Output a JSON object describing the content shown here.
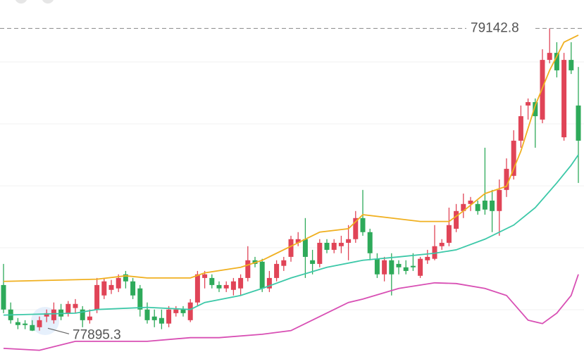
{
  "chart_data": {
    "type": "candlestick",
    "ylim": [
      77780,
      79260
    ],
    "up_color": "#e04457",
    "down_color": "#2eaa5a",
    "high_label": 79142.8,
    "low_label": 77895.3,
    "open": [
      78085,
      77984,
      77932,
      77926,
      77920,
      77911,
      77955,
      77940,
      77984,
      77969,
      77990,
      77984,
      77940,
      77984,
      78042,
      78065,
      78071,
      78129,
      78100,
      78071,
      77984,
      77955,
      77949,
      77926,
      77969,
      77984,
      77940,
      78013,
      78114,
      78114,
      78085,
      78071,
      78065,
      78071,
      78114,
      78187,
      78181,
      78071,
      78114,
      78164,
      78201,
      78259,
      78274,
      78187,
      78172,
      78259,
      78230,
      78245,
      78259,
      78274,
      78361,
      78303,
      78193,
      78129,
      78187,
      78172,
      78158,
      78164,
      78123,
      78187,
      78193,
      78245,
      78259,
      78317,
      78390,
      78419,
      78419,
      78433,
      78433,
      78390,
      78477,
      78535,
      78680,
      78825,
      78839,
      78767,
      79013,
      79042,
      78694,
      79013,
      78825
    ],
    "high": [
      78172,
      78013,
      77949,
      77940,
      77940,
      77955,
      77984,
      78013,
      78007,
      78019,
      78027,
      77998,
      77984,
      78114,
      78114,
      78106,
      78129,
      78143,
      78114,
      78085,
      78013,
      77984,
      77984,
      77998,
      77998,
      77998,
      78027,
      78143,
      78143,
      78129,
      78100,
      78100,
      78114,
      78129,
      78245,
      78201,
      78193,
      78143,
      78187,
      78201,
      78288,
      78303,
      78361,
      78230,
      78274,
      78274,
      78274,
      78288,
      78332,
      78390,
      78477,
      78317,
      78216,
      78201,
      78216,
      78187,
      78187,
      78216,
      78201,
      78230,
      78332,
      78274,
      78404,
      78419,
      78462,
      78448,
      78433,
      78651,
      78477,
      78520,
      78607,
      78723,
      78825,
      78854,
      78854,
      79057,
      79142.8,
      79086,
      79042,
      79086,
      78984
    ],
    "low": [
      77969,
      77926,
      77903,
      77903,
      77895.3,
      77897,
      77932,
      77926,
      77940,
      77955,
      77969,
      77911,
      77926,
      77969,
      78027,
      78048,
      78056,
      78071,
      78027,
      77955,
      77926,
      77911,
      77903,
      77911,
      77955,
      77955,
      77932,
      77998,
      78071,
      78071,
      78056,
      78056,
      78042,
      78042,
      78100,
      78158,
      78056,
      78056,
      78100,
      78143,
      78181,
      78245,
      78114,
      78129,
      78158,
      78216,
      78216,
      78216,
      78187,
      78259,
      78288,
      78187,
      78114,
      78100,
      78042,
      78129,
      78129,
      78143,
      78114,
      78172,
      78187,
      78230,
      78245,
      78303,
      78361,
      78390,
      78375,
      78375,
      78303,
      78288,
      78448,
      78520,
      78651,
      78767,
      78651,
      78752,
      78999,
      78941,
      78680,
      78955,
      78506
    ],
    "close": [
      77984,
      77940,
      77920,
      77920,
      77897,
      77940,
      77969,
      77984,
      77955,
      78007,
      78007,
      77940,
      77955,
      78085,
      78100,
      78085,
      78114,
      78100,
      78042,
      77984,
      77940,
      77940,
      77926,
      77984,
      77984,
      77969,
      78013,
      78129,
      78129,
      78085,
      78071,
      78085,
      78100,
      78114,
      78187,
      78172,
      78071,
      78114,
      78172,
      78187,
      78274,
      78274,
      78201,
      78172,
      78259,
      78230,
      78259,
      78259,
      78274,
      78361,
      78303,
      78216,
      78129,
      78187,
      78129,
      78158,
      78143,
      78158,
      78193,
      78201,
      78245,
      78259,
      78332,
      78390,
      78419,
      78433,
      78390,
      78396,
      78390,
      78477,
      78564,
      78680,
      78781,
      78839,
      78781,
      79013,
      79042,
      78970,
      79013,
      78970,
      78680
    ],
    "lines": [
      {
        "color": "#f0b020",
        "x": [
          0,
          13,
          17,
          20,
          26,
          28,
          33,
          36,
          40,
          44,
          48,
          50,
          54,
          58,
          62,
          64,
          67,
          70,
          72,
          74,
          76,
          78,
          80
        ],
        "values": [
          78100,
          78109,
          78123,
          78114,
          78114,
          78135,
          78158,
          78187,
          78245,
          78303,
          78317,
          78375,
          78361,
          78347,
          78347,
          78390,
          78462,
          78492,
          78637,
          78825,
          78970,
          79086,
          79115
        ]
      },
      {
        "color": "#3cc8a8",
        "x": [
          0,
          10,
          13,
          20,
          26,
          28,
          33,
          36,
          40,
          45,
          50,
          55,
          60,
          63,
          67,
          71,
          74,
          77,
          79,
          80
        ],
        "values": [
          77961,
          77969,
          77984,
          77993,
          77984,
          78013,
          78042,
          78071,
          78114,
          78158,
          78187,
          78201,
          78216,
          78230,
          78274,
          78332,
          78404,
          78506,
          78579,
          78622
        ]
      },
      {
        "color": "#d84fb4",
        "x": [
          0,
          5,
          10,
          20,
          26,
          30,
          36,
          40,
          44,
          48,
          50,
          55,
          60,
          63,
          67,
          70,
          73,
          75,
          77,
          79,
          80
        ],
        "values": [
          77824,
          77816,
          77853,
          77853,
          77868,
          77868,
          77882,
          77897,
          77955,
          78013,
          78027,
          78071,
          78094,
          78091,
          78071,
          78042,
          77940,
          77926,
          77969,
          78042,
          78129
        ]
      }
    ]
  }
}
